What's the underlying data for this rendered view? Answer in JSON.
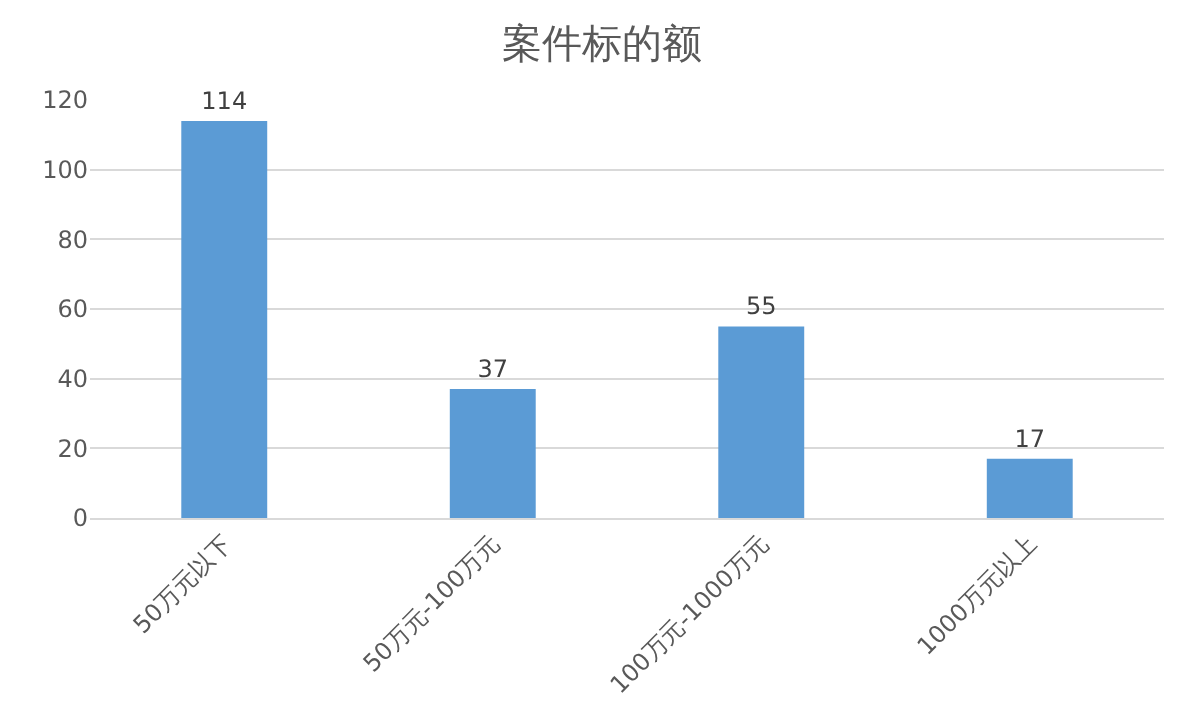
{
  "chart_data": {
    "type": "bar",
    "title": "案件标的额",
    "categories": [
      "50万元以下",
      "50万元-100万元",
      "100万元-1000万元",
      "1000万元以上"
    ],
    "values": [
      114,
      37,
      55,
      17
    ],
    "color": "#5b9bd5",
    "ylim": [
      0,
      120
    ],
    "yticks": [
      0,
      20,
      40,
      60,
      80,
      100,
      120
    ],
    "grid": "y",
    "data_labels": true
  }
}
